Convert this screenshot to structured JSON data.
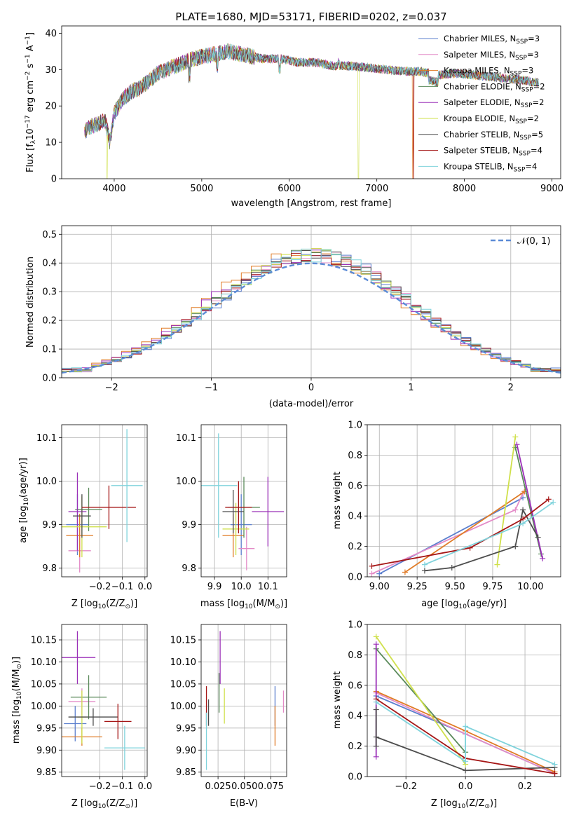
{
  "chart_data": [
    {
      "id": "spectrum",
      "type": "line",
      "title": "PLATE=1680, MJD=53171, FIBERID=0202, z=0.037",
      "xlabel": "wavelength [Angstrom, rest frame]",
      "ylabel": "Flux [f",
      "ylabel_sub": "λ",
      "ylabel_rest": "10",
      "ylabel_sup1": "−17",
      "ylabel_rest2": " erg cm",
      "ylabel_sup2": "−2",
      "ylabel_rest3": " s",
      "ylabel_sup3": "−1",
      "ylabel_rest4": " A",
      "ylabel_sup4": "−1",
      "ylabel_end": "]",
      "xlim": [
        3400,
        9100
      ],
      "ylim": [
        0,
        42
      ],
      "xticks": [
        4000,
        5000,
        6000,
        7000,
        8000,
        9000
      ],
      "yticks": [
        0,
        10,
        20,
        30,
        40
      ],
      "legend_position": "top-right",
      "series": [
        {
          "name": "Chabrier MILES, N",
          "sub": "SSP",
          "suffix": "=3",
          "color": "#5b7fce"
        },
        {
          "name": "Salpeter MILES, N",
          "sub": "SSP",
          "suffix": "=3",
          "color": "#e38bc7"
        },
        {
          "name": "Kroupa MILES, N",
          "sub": "SSP",
          "suffix": "=3",
          "color": "#e07b26"
        },
        {
          "name": "Chabrier ELODIE, N",
          "sub": "SSP",
          "suffix": "=2",
          "color": "#5a8a5a"
        },
        {
          "name": "Salpeter ELODIE, N",
          "sub": "SSP",
          "suffix": "=2",
          "color": "#9b30b8"
        },
        {
          "name": "Kroupa ELODIE, N",
          "sub": "SSP",
          "suffix": "=2",
          "color": "#cfe04a"
        },
        {
          "name": "Chabrier STELIB, N",
          "sub": "SSP",
          "suffix": "=5",
          "color": "#4d4d4d"
        },
        {
          "name": "Salpeter STELIB, N",
          "sub": "SSP",
          "suffix": "=4",
          "color": "#a51616"
        },
        {
          "name": "Kroupa STELIB, N",
          "sub": "SSP",
          "suffix": "=4",
          "color": "#7fd3dc"
        }
      ],
      "continuum": {
        "x": [
          3650,
          3700,
          3800,
          3900,
          3950,
          4000,
          4100,
          4200,
          4300,
          4400,
          4500,
          4700,
          4900,
          5100,
          5300,
          5500,
          5700,
          5900,
          6100,
          6300,
          6500,
          6700,
          6900,
          7100,
          7300,
          7500,
          7700,
          7900,
          8100,
          8300,
          8500,
          8700,
          8800
        ],
        "y": [
          12,
          14,
          15,
          16,
          10,
          18,
          22,
          24,
          25,
          27,
          29,
          31,
          33,
          34,
          35,
          34,
          33,
          33,
          32,
          32,
          31,
          31,
          30.5,
          30,
          29.5,
          29.5,
          28.5,
          29,
          28.5,
          28,
          27.5,
          27,
          26.5
        ]
      },
      "cutoffs": [
        {
          "series": "Kroupa ELODIE, N",
          "x": 3920
        },
        {
          "series": "Kroupa ELODIE, N",
          "x": 6790
        },
        {
          "series": "Kroupa MILES, N",
          "x": 7410
        },
        {
          "series": "Salpeter STELIB, N",
          "x": 7420
        }
      ]
    },
    {
      "id": "residuals",
      "type": "bar",
      "xlabel": "(data-model)/error",
      "ylabel": "Normed distribution",
      "xlim": [
        -2.5,
        2.5
      ],
      "ylim": [
        0,
        0.53
      ],
      "xticks": [
        -2,
        -1,
        0,
        1,
        2
      ],
      "yticks": [
        0.0,
        0.1,
        0.2,
        0.3,
        0.4,
        0.5
      ],
      "grid": true,
      "legend_position": "top-right",
      "reference_label": "𝒩(0, 1)",
      "reference_color": "#5b8bd6",
      "bin_width": 0.1
    },
    {
      "id": "age-vs-Z",
      "type": "scatter",
      "xlabel": "Z [log",
      "xlabel_sub": "10",
      "xlabel_rest": "(Z/Z",
      "xlabel_sub2": "⊙",
      "xlabel_end": ")]",
      "ylabel": "age  [log",
      "ylabel_sub": "10",
      "ylabel_rest": "(age/yr)]",
      "xlim": [
        -0.37,
        0.01
      ],
      "ylim": [
        9.78,
        10.13
      ],
      "xticks": [
        -0.2,
        -0.1,
        0.0
      ],
      "xticklabels": [
        "−0.2",
        "−0.1",
        "0.0"
      ],
      "yticks": [
        9.8,
        9.9,
        10.0,
        10.1
      ],
      "grid": true,
      "points": [
        {
          "series": 0,
          "x": -0.3,
          "y": 9.9,
          "xerr": 0.05,
          "yerr": 0.07
        },
        {
          "series": 1,
          "x": -0.29,
          "y": 9.84,
          "xerr": 0.05,
          "yerr": 0.05
        },
        {
          "series": 2,
          "x": -0.29,
          "y": 9.875,
          "xerr": 0.06,
          "yerr": 0.05
        },
        {
          "series": 3,
          "x": -0.25,
          "y": 9.935,
          "xerr": 0.06,
          "yerr": 0.05
        },
        {
          "series": 4,
          "x": -0.3,
          "y": 9.93,
          "xerr": 0.04,
          "yerr": 0.09
        },
        {
          "series": 5,
          "x": -0.28,
          "y": 9.895,
          "xerr": 0.11,
          "yerr": 0.07
        },
        {
          "series": 6,
          "x": -0.28,
          "y": 9.92,
          "xerr": 0.04,
          "yerr": 0.05
        },
        {
          "series": 7,
          "x": -0.16,
          "y": 9.94,
          "xerr": 0.12,
          "yerr": 0.05
        },
        {
          "series": 8,
          "x": -0.08,
          "y": 9.99,
          "xerr": 0.07,
          "yerr": 0.13
        }
      ]
    },
    {
      "id": "age-vs-mass",
      "type": "scatter",
      "xlabel": "mass [log",
      "xlabel_sub": "10",
      "xlabel_rest": "(M/M",
      "xlabel_sub2": "⊙",
      "xlabel_end": ")]",
      "xlim": [
        9.85,
        10.17
      ],
      "ylim": [
        9.78,
        10.13
      ],
      "xticks": [
        9.9,
        10.0,
        10.1
      ],
      "xticklabels": [
        "9.9",
        "10.0",
        "10.1"
      ],
      "yticks": [
        9.8,
        9.9,
        10.0,
        10.1
      ],
      "grid": true,
      "points": [
        {
          "series": 0,
          "x": 10.0,
          "y": 9.9,
          "xerr": 0.04,
          "yerr": 0.07
        },
        {
          "series": 1,
          "x": 10.02,
          "y": 9.845,
          "xerr": 0.03,
          "yerr": 0.05
        },
        {
          "series": 2,
          "x": 9.97,
          "y": 9.875,
          "xerr": 0.04,
          "yerr": 0.05
        },
        {
          "series": 3,
          "x": 10.01,
          "y": 9.94,
          "xerr": 0.06,
          "yerr": 0.07
        },
        {
          "series": 4,
          "x": 10.1,
          "y": 9.93,
          "xerr": 0.06,
          "yerr": 0.08
        },
        {
          "series": 5,
          "x": 9.98,
          "y": 9.89,
          "xerr": 0.05,
          "yerr": 0.06
        },
        {
          "series": 6,
          "x": 9.97,
          "y": 9.93,
          "xerr": 0.04,
          "yerr": 0.05
        },
        {
          "series": 7,
          "x": 9.99,
          "y": 9.94,
          "xerr": 0.05,
          "yerr": 0.06
        },
        {
          "series": 8,
          "x": 9.915,
          "y": 9.99,
          "xerr": 0.07,
          "yerr": 0.12
        }
      ]
    },
    {
      "id": "weight-vs-age",
      "type": "line",
      "xlabel": "age  [log",
      "xlabel_sub": "10",
      "xlabel_rest": "(age/yr)]",
      "ylabel": "mass weight",
      "xlim": [
        8.92,
        10.2
      ],
      "ylim": [
        0,
        1
      ],
      "xticks": [
        9.0,
        9.25,
        9.5,
        9.75,
        10.0
      ],
      "xticklabels": [
        "9.00",
        "9.25",
        "9.50",
        "9.75",
        "10.00"
      ],
      "yticks": [
        0.0,
        0.2,
        0.4,
        0.6,
        0.8,
        1.0
      ],
      "grid": true,
      "series": [
        {
          "series": 0,
          "x": [
            9.0,
            9.95
          ],
          "y": [
            0.02,
            0.52
          ]
        },
        {
          "series": 1,
          "x": [
            8.95,
            9.9,
            9.95
          ],
          "y": [
            0.02,
            0.44,
            0.55
          ]
        },
        {
          "series": 2,
          "x": [
            9.17,
            9.96
          ],
          "y": [
            0.03,
            0.56
          ]
        },
        {
          "series": 3,
          "x": [
            9.9,
            10.07
          ],
          "y": [
            0.85,
            0.15
          ]
        },
        {
          "series": 4,
          "x": [
            9.91,
            10.08
          ],
          "y": [
            0.87,
            0.12
          ]
        },
        {
          "series": 5,
          "x": [
            9.78,
            9.9
          ],
          "y": [
            0.08,
            0.92
          ]
        },
        {
          "series": 6,
          "x": [
            9.3,
            9.48,
            9.9,
            9.95,
            10.05
          ],
          "y": [
            0.04,
            0.06,
            0.2,
            0.44,
            0.26
          ]
        },
        {
          "series": 7,
          "x": [
            8.95,
            9.6,
            9.95,
            10.12
          ],
          "y": [
            0.07,
            0.19,
            0.38,
            0.51
          ]
        },
        {
          "series": 8,
          "x": [
            9.3,
            9.95,
            10.15
          ],
          "y": [
            0.08,
            0.35,
            0.49
          ]
        }
      ]
    },
    {
      "id": "mass-vs-Z",
      "type": "scatter",
      "xlabel": "Z [log",
      "xlabel_sub": "10",
      "xlabel_rest": "(Z/Z",
      "xlabel_sub2": "⊙",
      "xlabel_end": ")]",
      "ylabel": "mass [log",
      "ylabel_sub": "10",
      "ylabel_rest": "(M/M",
      "ylabel_sub2": "⊙",
      "ylabel_end": ")]",
      "xlim": [
        -0.37,
        0.01
      ],
      "ylim": [
        9.84,
        10.185
      ],
      "xticks": [
        -0.2,
        -0.1,
        0.0
      ],
      "xticklabels": [
        "−0.2",
        "−0.1",
        "0.0"
      ],
      "yticks": [
        9.85,
        9.9,
        9.95,
        10.0,
        10.05,
        10.1,
        10.15
      ],
      "grid": true,
      "points": [
        {
          "series": 0,
          "x": -0.31,
          "y": 9.96,
          "xerr": 0.05,
          "yerr": 0.04
        },
        {
          "series": 1,
          "x": -0.28,
          "y": 10.01,
          "xerr": 0.06,
          "yerr": 0.03
        },
        {
          "series": 2,
          "x": -0.28,
          "y": 9.93,
          "xerr": 0.09,
          "yerr": 0.02
        },
        {
          "series": 3,
          "x": -0.25,
          "y": 10.02,
          "xerr": 0.08,
          "yerr": 0.05
        },
        {
          "series": 4,
          "x": -0.3,
          "y": 10.11,
          "xerr": 0.08,
          "yerr": 0.06
        },
        {
          "series": 5,
          "x": -0.28,
          "y": 9.975,
          "xerr": 0.02,
          "yerr": 0.06
        },
        {
          "series": 6,
          "x": -0.23,
          "y": 9.975,
          "xerr": 0.11,
          "yerr": 0.02
        },
        {
          "series": 7,
          "x": -0.12,
          "y": 9.965,
          "xerr": 0.06,
          "yerr": 0.04
        },
        {
          "series": 8,
          "x": -0.09,
          "y": 9.905,
          "xerr": 0.09,
          "yerr": 0.05
        }
      ]
    },
    {
      "id": "mass-vs-ebv",
      "type": "scatter",
      "xlabel": "E(B-V)",
      "xlim": [
        0.009,
        0.09
      ],
      "ylim": [
        9.84,
        10.185
      ],
      "xticks": [
        0.025,
        0.05,
        0.075
      ],
      "xticklabels": [
        "0.025",
        "0.050",
        "0.075"
      ],
      "yticks": [
        9.85,
        9.9,
        9.95,
        10.0,
        10.05,
        10.1,
        10.15
      ],
      "grid": true,
      "points": [
        {
          "series": 0,
          "x": 0.079,
          "y": 10.0,
          "xerr": 0.0,
          "yerr": 0.045
        },
        {
          "series": 1,
          "x": 0.087,
          "y": 10.01,
          "xerr": 0.0,
          "yerr": 0.025
        },
        {
          "series": 2,
          "x": 0.079,
          "y": 9.955,
          "xerr": 0.0,
          "yerr": 0.045
        },
        {
          "series": 3,
          "x": 0.026,
          "y": 10.03,
          "xerr": 0.0,
          "yerr": 0.045
        },
        {
          "series": 4,
          "x": 0.027,
          "y": 10.11,
          "xerr": 0.0,
          "yerr": 0.06
        },
        {
          "series": 5,
          "x": 0.031,
          "y": 10.0,
          "xerr": 0.0,
          "yerr": 0.04
        },
        {
          "series": 6,
          "x": 0.016,
          "y": 9.985,
          "xerr": 0.0,
          "yerr": 0.03
        },
        {
          "series": 7,
          "x": 0.014,
          "y": 10.0,
          "xerr": 0.0,
          "yerr": 0.045
        },
        {
          "series": 8,
          "x": 0.014,
          "y": 9.92,
          "xerr": 0.0,
          "yerr": 0.065
        }
      ]
    },
    {
      "id": "weight-vs-Z",
      "type": "line",
      "xlabel": "Z [log",
      "xlabel_sub": "10",
      "xlabel_rest": "(Z/Z",
      "xlabel_sub2": "⊙",
      "xlabel_end": ")]",
      "ylabel": "mass weight",
      "xlim": [
        -0.33,
        0.32
      ],
      "ylim": [
        0,
        1
      ],
      "xticks": [
        -0.2,
        0.0,
        0.2
      ],
      "xticklabels": [
        "−0.2",
        "0.0",
        "0.2"
      ],
      "yticks": [
        0.0,
        0.2,
        0.4,
        0.6,
        0.8,
        1.0
      ],
      "grid": true,
      "series": [
        {
          "series": 0,
          "x": [
            -0.3,
            0.0,
            0.3
          ],
          "y": [
            0.53,
            0.28,
            0.02
          ]
        },
        {
          "series": 1,
          "x": [
            -0.3,
            0.0,
            0.3
          ],
          "y": [
            0.55,
            0.28,
            0.02
          ]
        },
        {
          "series": 2,
          "x": [
            -0.3,
            0.0,
            0.3
          ],
          "y": [
            0.56,
            0.3,
            0.03
          ]
        },
        {
          "series": 3,
          "x": [
            -0.3,
            0.0
          ],
          "y": [
            0.84,
            0.16
          ]
        },
        {
          "series": 4,
          "x": [
            -0.3,
            -0.3
          ],
          "y": [
            0.87,
            0.13
          ]
        },
        {
          "series": 5,
          "x": [
            -0.3,
            0.0
          ],
          "y": [
            0.92,
            0.08
          ]
        },
        {
          "series": 6,
          "x": [
            -0.3,
            -0.3,
            -0.3,
            0.0,
            0.3
          ],
          "y": [
            0.44,
            0.2,
            0.26,
            0.04,
            0.06
          ]
        },
        {
          "series": 7,
          "x": [
            -0.3,
            0.0,
            0.3
          ],
          "y": [
            0.51,
            0.12,
            0.02
          ]
        },
        {
          "series": 8,
          "x": [
            -0.3,
            0.0,
            0.0,
            0.3
          ],
          "y": [
            0.49,
            0.1,
            0.33,
            0.08
          ]
        }
      ]
    }
  ]
}
